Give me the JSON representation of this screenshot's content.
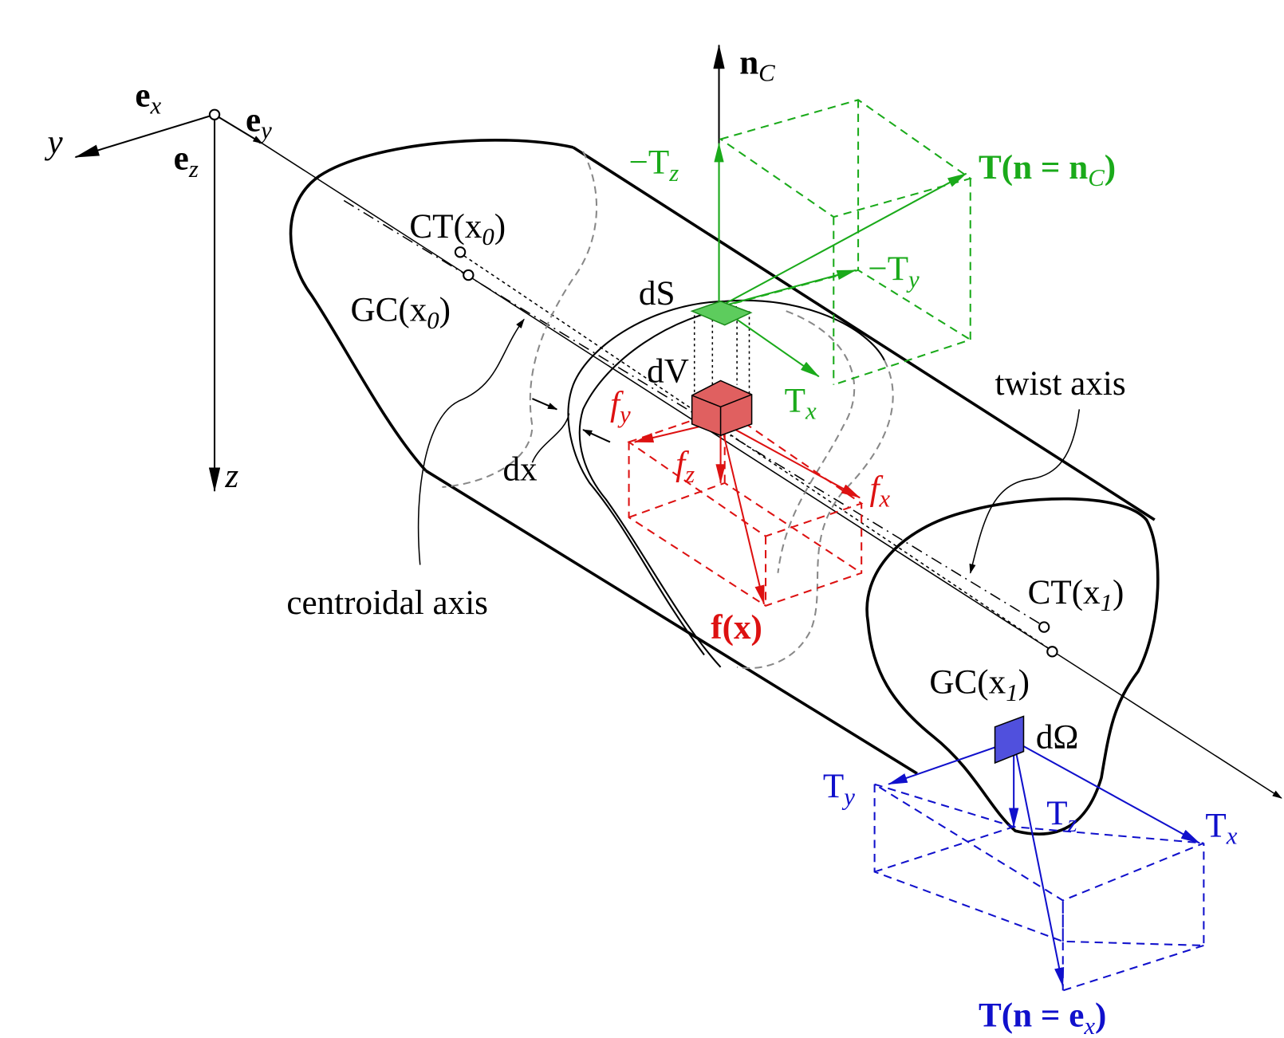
{
  "labels": [
    {
      "text": "e",
      "sub": "x"
    },
    {
      "text": "y"
    },
    {
      "text": "e",
      "sub": "y"
    },
    {
      "text": "e",
      "sub": "z"
    },
    {
      "text": "z"
    },
    {
      "text": "n",
      "sub": "C"
    },
    {
      "text": "−T",
      "sub": "z"
    },
    {
      "text": "T(n = n",
      "sub": "C",
      "end": ")"
    },
    {
      "text": "−T",
      "sub": "y"
    },
    {
      "text": "CT(x",
      "sub": "0",
      "end": ")"
    },
    {
      "text": "GC(x",
      "sub": "0",
      "end": ")"
    },
    {
      "text": "dS"
    },
    {
      "text": "dV"
    },
    {
      "text": "T",
      "sub": "x"
    },
    {
      "text": "twist axis"
    },
    {
      "text": "f",
      "sub": "y"
    },
    {
      "text": "f",
      "sub": "z"
    },
    {
      "text": "f",
      "sub": "x"
    },
    {
      "text": "dx"
    },
    {
      "text": "centroidal axis"
    },
    {
      "text": "f(x)"
    },
    {
      "text": "CT(x",
      "sub": "1",
      "end": ")"
    },
    {
      "text": "GC(x",
      "sub": "1",
      "end": ")"
    },
    {
      "text": "dΩ"
    },
    {
      "text": "T",
      "sub": "y"
    },
    {
      "text": "T",
      "sub": "z"
    },
    {
      "text": "T",
      "sub": "x"
    },
    {
      "text": "T(n = e",
      "sub": "x",
      "end": ")"
    }
  ]
}
